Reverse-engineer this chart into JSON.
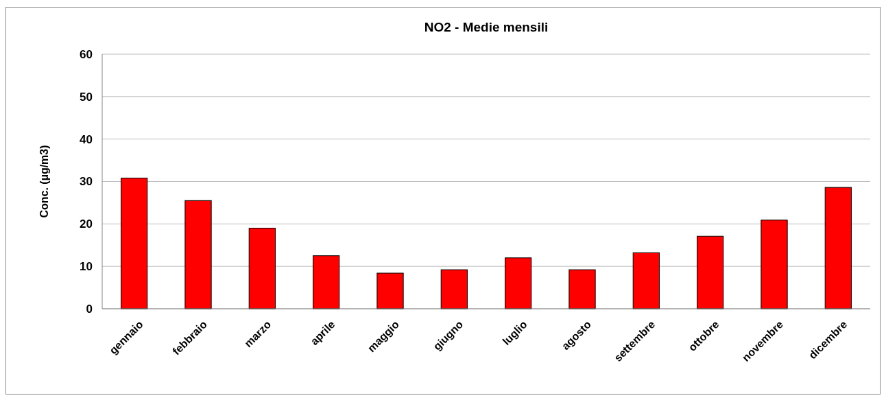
{
  "chart_data": {
    "type": "bar",
    "title": "NO2 - Medie mensili",
    "ylabel": "Conc. (µg/m3)",
    "categories": [
      "gennaio",
      "febbraio",
      "marzo",
      "aprile",
      "maggio",
      "giugno",
      "luglio",
      "agosto",
      "settembre",
      "ottobre",
      "novembre",
      "dicembre"
    ],
    "series": [
      {
        "color": "#ff0000",
        "values": [
          30.8,
          25.5,
          19.0,
          12.5,
          8.4,
          9.2,
          12.0,
          9.2,
          13.2,
          17.1,
          20.9,
          28.6
        ]
      }
    ],
    "ylim": [
      0,
      60
    ],
    "yticks": [
      0,
      10,
      20,
      30,
      40,
      50,
      60
    ],
    "grid": "y"
  }
}
